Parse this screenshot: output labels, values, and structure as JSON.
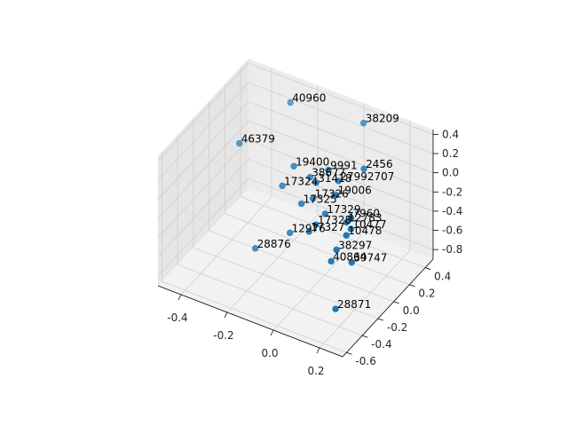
{
  "chart_data": {
    "type": "scatter",
    "projection": "3d",
    "title": "",
    "xlabel": "",
    "ylabel": "",
    "zlabel": "",
    "grid": true,
    "color": "#1f77b4",
    "xlim": [
      -0.5,
      0.3
    ],
    "ylim": [
      -0.65,
      0.5
    ],
    "zlim": [
      -0.9,
      0.45
    ],
    "x_ticks": [
      "-0.4",
      "-0.2",
      "0.0",
      "0.2"
    ],
    "y_ticks": [
      "-0.6",
      "-0.4",
      "-0.2",
      "0.0",
      "0.2",
      "0.4"
    ],
    "z_ticks": [
      "-0.8",
      "-0.6",
      "-0.4",
      "-0.2",
      "0.0",
      "0.2",
      "0.4"
    ],
    "points": [
      {
        "label": "38209",
        "x": 0.05,
        "y": 0.35,
        "z": 0.42
      },
      {
        "label": "40960",
        "x": -0.25,
        "y": 0.3,
        "z": 0.4
      },
      {
        "label": "2456",
        "x": 0.13,
        "y": 0.12,
        "z": 0.22
      },
      {
        "label": "9991",
        "x": 0.0,
        "y": 0.05,
        "z": 0.15
      },
      {
        "label": "27992707",
        "x": 0.05,
        "y": 0.03,
        "z": 0.1
      },
      {
        "label": "19400",
        "x": -0.15,
        "y": 0.05,
        "z": 0.05
      },
      {
        "label": "38677",
        "x": -0.08,
        "y": 0.05,
        "z": 0.0
      },
      {
        "label": "31418",
        "x": -0.05,
        "y": 0.04,
        "z": -0.02
      },
      {
        "label": "19006",
        "x": 0.05,
        "y": 0.0,
        "z": -0.02
      },
      {
        "label": "7960",
        "x": 0.2,
        "y": -0.25,
        "z": 0.1
      },
      {
        "label": "10477",
        "x": 0.21,
        "y": -0.28,
        "z": 0.02
      },
      {
        "label": "12783",
        "x": 0.17,
        "y": -0.22,
        "z": 0.0
      },
      {
        "label": "10478",
        "x": 0.18,
        "y": -0.25,
        "z": -0.1
      },
      {
        "label": "46379",
        "x": -0.42,
        "y": 0.15,
        "z": -0.05
      },
      {
        "label": "17326",
        "x": -0.05,
        "y": 0.0,
        "z": -0.15
      },
      {
        "label": "17324",
        "x": -0.2,
        "y": 0.05,
        "z": -0.2
      },
      {
        "label": "17325",
        "x": -0.1,
        "y": 0.0,
        "z": -0.25
      },
      {
        "label": "17329",
        "x": 0.02,
        "y": -0.05,
        "z": -0.2
      },
      {
        "label": "17328",
        "x": -0.02,
        "y": -0.05,
        "z": -0.35
      },
      {
        "label": "17327",
        "x": -0.05,
        "y": -0.05,
        "z": -0.45
      },
      {
        "label": "38297",
        "x": 0.12,
        "y": -0.2,
        "z": -0.35
      },
      {
        "label": "39747",
        "x": 0.22,
        "y": -0.3,
        "z": -0.3
      },
      {
        "label": "40864",
        "x": 0.08,
        "y": -0.15,
        "z": -0.55
      },
      {
        "label": "12976",
        "x": -0.15,
        "y": 0.0,
        "z": -0.6
      },
      {
        "label": "28871",
        "x": 0.15,
        "y": -0.3,
        "z": -0.85
      },
      {
        "label": "28876",
        "x": -0.3,
        "y": 0.0,
        "z": -0.9
      }
    ]
  }
}
